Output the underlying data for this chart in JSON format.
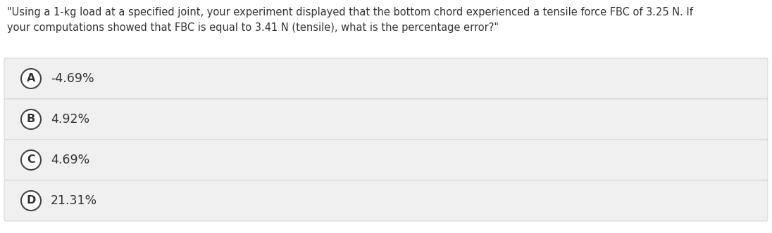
{
  "question_text_line1": "\"Using a 1-kg load at a specified joint, your experiment displayed that the bottom chord experienced a tensile force FBC of 3.25 N. If",
  "question_text_line2": "your computations showed that FBC is equal to 3.41 N (tensile), what is the percentage error?\"",
  "options": [
    {
      "label": "A",
      "text": "-4.69%"
    },
    {
      "label": "B",
      "text": "4.92%"
    },
    {
      "label": "C",
      "text": "4.69%"
    },
    {
      "label": "D",
      "text": "21.31%"
    }
  ],
  "bg_color": "#ffffff",
  "option_bg_color": "#f0f0f0",
  "option_border_color": "#d8d8d8",
  "text_color": "#333333",
  "circle_edge_color": "#444444",
  "question_fontsize": 10.5,
  "option_fontsize": 12.5,
  "label_fontsize": 11.5,
  "fig_width": 10.96,
  "fig_height": 3.32,
  "dpi": 100
}
